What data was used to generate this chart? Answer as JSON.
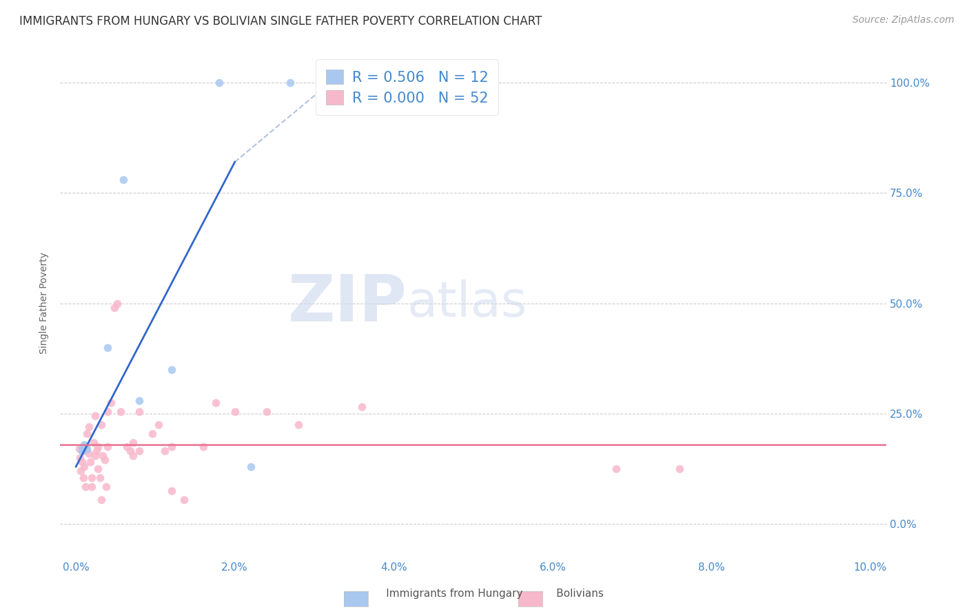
{
  "title": "IMMIGRANTS FROM HUNGARY VS BOLIVIAN SINGLE FATHER POVERTY CORRELATION CHART",
  "source": "Source: ZipAtlas.com",
  "ylabel": "Single Father Poverty",
  "x_tick_vals": [
    0.0,
    2.0,
    4.0,
    6.0,
    8.0,
    10.0
  ],
  "y_tick_vals": [
    0.0,
    25.0,
    50.0,
    75.0,
    100.0
  ],
  "xlim": [
    -0.2,
    10.2
  ],
  "ylim": [
    -8.0,
    108.0
  ],
  "background_color": "#ffffff",
  "grid_color": "#c8c8c8",
  "hungary_color": "#a8c8f0",
  "bolivia_color": "#f8b8cc",
  "hungary_line_color": "#3366cc",
  "bolivia_line_color": "#e87090",
  "hungary_scatter": [
    [
      0.08,
      17.0
    ],
    [
      0.08,
      16.5
    ],
    [
      0.1,
      18.0
    ],
    [
      0.12,
      17.5
    ],
    [
      0.14,
      17.0
    ],
    [
      0.4,
      40.0
    ],
    [
      0.6,
      78.0
    ],
    [
      0.8,
      28.0
    ],
    [
      1.2,
      35.0
    ],
    [
      1.8,
      100.0
    ],
    [
      2.7,
      100.0
    ],
    [
      2.2,
      13.0
    ]
  ],
  "bolivia_scatter": [
    [
      0.04,
      17.0
    ],
    [
      0.05,
      15.0
    ],
    [
      0.06,
      12.0
    ],
    [
      0.08,
      14.0
    ],
    [
      0.09,
      10.5
    ],
    [
      0.1,
      13.0
    ],
    [
      0.12,
      8.5
    ],
    [
      0.12,
      16.5
    ],
    [
      0.14,
      20.5
    ],
    [
      0.16,
      22.0
    ],
    [
      0.16,
      16.0
    ],
    [
      0.18,
      14.0
    ],
    [
      0.2,
      10.5
    ],
    [
      0.2,
      8.5
    ],
    [
      0.22,
      18.5
    ],
    [
      0.24,
      24.5
    ],
    [
      0.24,
      15.5
    ],
    [
      0.26,
      16.5
    ],
    [
      0.28,
      17.5
    ],
    [
      0.28,
      12.5
    ],
    [
      0.3,
      10.5
    ],
    [
      0.32,
      5.5
    ],
    [
      0.32,
      22.5
    ],
    [
      0.34,
      15.5
    ],
    [
      0.36,
      14.5
    ],
    [
      0.38,
      8.5
    ],
    [
      0.4,
      25.5
    ],
    [
      0.4,
      17.5
    ],
    [
      0.44,
      27.5
    ],
    [
      0.48,
      49.0
    ],
    [
      0.52,
      50.0
    ],
    [
      0.56,
      25.5
    ],
    [
      0.64,
      17.5
    ],
    [
      0.68,
      16.5
    ],
    [
      0.72,
      18.5
    ],
    [
      0.72,
      15.5
    ],
    [
      0.8,
      25.5
    ],
    [
      0.8,
      16.5
    ],
    [
      0.96,
      20.5
    ],
    [
      1.04,
      22.5
    ],
    [
      1.12,
      16.5
    ],
    [
      1.2,
      17.5
    ],
    [
      1.2,
      7.5
    ],
    [
      1.36,
      5.5
    ],
    [
      1.6,
      17.5
    ],
    [
      1.76,
      27.5
    ],
    [
      2.0,
      25.5
    ],
    [
      2.4,
      25.5
    ],
    [
      2.8,
      22.5
    ],
    [
      3.6,
      26.5
    ],
    [
      6.8,
      12.5
    ],
    [
      7.6,
      12.5
    ]
  ],
  "hungary_trendline": [
    [
      0.0,
      13.0
    ],
    [
      2.0,
      82.0
    ]
  ],
  "bolivia_trendline_y": 18.0,
  "dash_line": [
    [
      2.0,
      82.0
    ],
    [
      3.2,
      100.0
    ]
  ],
  "legend_title_blue": "R = 0.506",
  "legend_n_blue": "N = 12",
  "legend_title_pink": "R = 0.000",
  "legend_n_pink": "N = 52",
  "watermark_zip": "ZIP",
  "watermark_atlas": "atlas",
  "title_fontsize": 12,
  "source_fontsize": 10,
  "axis_label_fontsize": 10,
  "tick_fontsize": 11,
  "legend_fontsize": 15,
  "marker_size": 70
}
